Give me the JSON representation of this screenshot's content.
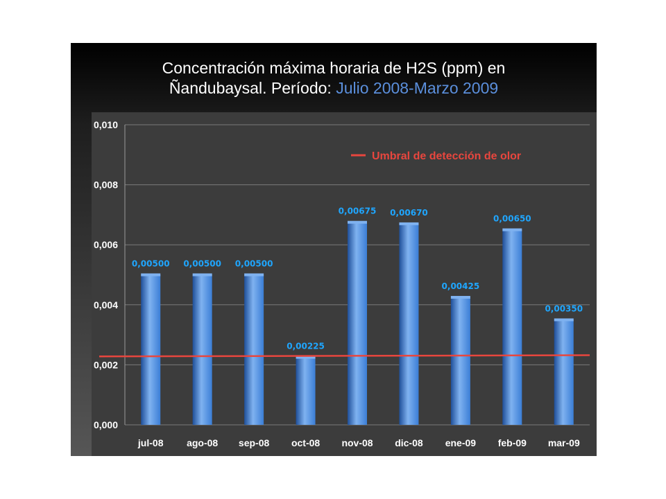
{
  "title": {
    "line1": "Concentración máxima horaria de H2S  (ppm) en",
    "line2_prefix": "Ñandubaysal. Período: ",
    "line2_accent": "Julio 2008-Marzo 2009"
  },
  "colors": {
    "bar": "#3b7ed6",
    "bar_dark": "#1f4f99",
    "bar_light": "#7fb2f0",
    "threshold": "#e8463e",
    "data_label": "#1fa6ff",
    "accent_title": "#5b8fdc"
  },
  "chart_data": {
    "type": "bar",
    "categories": [
      "jul-08",
      "ago-08",
      "sep-08",
      "oct-08",
      "nov-08",
      "dic-08",
      "ene-09",
      "feb-09",
      "mar-09"
    ],
    "values": [
      0.005,
      0.005,
      0.005,
      0.00225,
      0.00675,
      0.0067,
      0.00425,
      0.0065,
      0.0035
    ],
    "data_labels": [
      "0,00500",
      "0,00500",
      "0,00500",
      "0,00225",
      "0,00675",
      "0,00670",
      "0,00425",
      "0,00650",
      "0,00350"
    ],
    "ylim": [
      0,
      0.01
    ],
    "yticks": [
      0,
      0.002,
      0.004,
      0.006,
      0.008,
      0.01
    ],
    "ytick_labels": [
      "0,000",
      "0,002",
      "0,004",
      "0,006",
      "0,008",
      "0,010"
    ],
    "grid": true,
    "threshold": {
      "name": "Umbral de detección de olor",
      "start": 0.00228,
      "end": 0.00232
    },
    "legend_position": "top-right"
  }
}
